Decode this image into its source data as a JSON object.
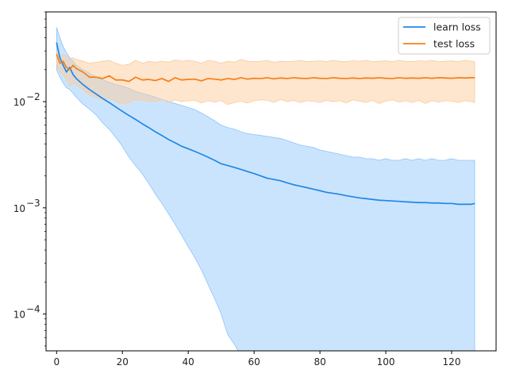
{
  "chart_data": {
    "type": "line",
    "yscale": "log",
    "xlim": [
      -3.2,
      133.5
    ],
    "ylim": [
      4.5e-05,
      0.07
    ],
    "grid": false,
    "legend_position": "top-right",
    "x_ticks": [
      0,
      20,
      40,
      60,
      80,
      100,
      120
    ],
    "x_tick_labels": [
      "0",
      "20",
      "40",
      "60",
      "80",
      "100",
      "120"
    ],
    "y_ticks": [
      0.0001,
      0.001,
      0.01
    ],
    "y_tick_labels": [
      "10",
      "10",
      "10"
    ],
    "y_tick_exponents": [
      "−4",
      "−3",
      "−2"
    ],
    "series": [
      {
        "name": "learn loss",
        "color": "#1f88e5",
        "band_color": "#8cc4fa",
        "x": [
          0,
          1,
          2,
          3,
          4,
          5,
          6,
          8,
          10,
          12,
          14,
          16,
          18,
          20,
          22,
          24,
          26,
          28,
          30,
          32,
          34,
          36,
          38,
          40,
          42,
          44,
          46,
          48,
          50,
          52,
          54,
          56,
          58,
          60,
          62,
          64,
          66,
          68,
          70,
          72,
          74,
          76,
          78,
          80,
          82,
          84,
          86,
          88,
          90,
          92,
          94,
          96,
          98,
          100,
          102,
          104,
          106,
          108,
          110,
          112,
          114,
          116,
          118,
          120,
          122,
          124,
          126,
          127
        ],
        "values": [
          0.036,
          0.026,
          0.022,
          0.019,
          0.021,
          0.018,
          0.0165,
          0.0145,
          0.013,
          0.0118,
          0.0107,
          0.0098,
          0.0089,
          0.0081,
          0.0074,
          0.0068,
          0.0062,
          0.0057,
          0.0052,
          0.0048,
          0.0044,
          0.0041,
          0.0038,
          0.0036,
          0.0034,
          0.0032,
          0.003,
          0.0028,
          0.0026,
          0.0025,
          0.0024,
          0.0023,
          0.0022,
          0.0021,
          0.002,
          0.0019,
          0.00185,
          0.0018,
          0.00172,
          0.00165,
          0.0016,
          0.00155,
          0.0015,
          0.00145,
          0.0014,
          0.00137,
          0.00134,
          0.0013,
          0.00127,
          0.00124,
          0.00122,
          0.0012,
          0.00118,
          0.00117,
          0.00116,
          0.00115,
          0.00114,
          0.00113,
          0.00112,
          0.00112,
          0.00111,
          0.00111,
          0.0011,
          0.0011,
          0.00108,
          0.00108,
          0.00108,
          0.0011
        ],
        "lower": [
          0.02,
          0.017,
          0.015,
          0.0135,
          0.013,
          0.012,
          0.011,
          0.0095,
          0.0085,
          0.0075,
          0.0063,
          0.0055,
          0.0046,
          0.0038,
          0.003,
          0.0025,
          0.0021,
          0.0017,
          0.00135,
          0.0011,
          0.00088,
          0.0007,
          0.00055,
          0.00043,
          0.00034,
          0.00026,
          0.00019,
          0.00014,
          0.0001,
          6.4e-05,
          5.2e-05,
          4e-05,
          4e-05,
          4e-05,
          4e-05,
          4e-05,
          4e-05,
          4e-05,
          4e-05,
          4e-05,
          4e-05,
          4e-05,
          4e-05,
          4e-05,
          4e-05,
          4e-05,
          4e-05,
          4e-05,
          4e-05,
          4e-05,
          4e-05,
          4e-05,
          4e-05,
          4e-05,
          4e-05,
          4e-05,
          4e-05,
          4e-05,
          4e-05,
          4e-05,
          4e-05,
          4e-05,
          4e-05,
          4e-05,
          4e-05,
          4e-05,
          4e-05,
          4e-05
        ],
        "upper": [
          0.05,
          0.04,
          0.033,
          0.029,
          0.026,
          0.024,
          0.022,
          0.02,
          0.0185,
          0.017,
          0.016,
          0.0152,
          0.0145,
          0.014,
          0.0133,
          0.0125,
          0.012,
          0.0115,
          0.011,
          0.0105,
          0.01,
          0.0096,
          0.0092,
          0.0088,
          0.0084,
          0.0078,
          0.0072,
          0.0066,
          0.006,
          0.0057,
          0.0055,
          0.0052,
          0.005,
          0.0049,
          0.0048,
          0.0047,
          0.0046,
          0.0045,
          0.0043,
          0.0041,
          0.0039,
          0.0038,
          0.0037,
          0.0035,
          0.0034,
          0.0033,
          0.0032,
          0.0031,
          0.003,
          0.003,
          0.0029,
          0.0029,
          0.0028,
          0.0029,
          0.0028,
          0.0028,
          0.0029,
          0.0028,
          0.0029,
          0.0028,
          0.0029,
          0.0028,
          0.0028,
          0.0029,
          0.0028,
          0.0028,
          0.0028,
          0.0028
        ]
      },
      {
        "name": "test loss",
        "color": "#f57f17",
        "band_color": "#fccb9e",
        "x": [
          0,
          1,
          2,
          3,
          4,
          5,
          6,
          8,
          10,
          12,
          14,
          16,
          18,
          20,
          22,
          24,
          26,
          28,
          30,
          32,
          34,
          36,
          38,
          40,
          42,
          44,
          46,
          48,
          50,
          52,
          54,
          56,
          58,
          60,
          62,
          64,
          66,
          68,
          70,
          72,
          74,
          76,
          78,
          80,
          82,
          84,
          86,
          88,
          90,
          92,
          94,
          96,
          98,
          100,
          102,
          104,
          106,
          108,
          110,
          112,
          114,
          116,
          118,
          120,
          122,
          124,
          126,
          127
        ],
        "values": [
          0.028,
          0.023,
          0.024,
          0.021,
          0.02,
          0.022,
          0.0205,
          0.019,
          0.017,
          0.017,
          0.0165,
          0.0175,
          0.016,
          0.016,
          0.0155,
          0.017,
          0.016,
          0.0162,
          0.0158,
          0.0165,
          0.0155,
          0.0168,
          0.016,
          0.0162,
          0.0163,
          0.0157,
          0.0165,
          0.0163,
          0.016,
          0.0165,
          0.0162,
          0.0168,
          0.0163,
          0.0166,
          0.0165,
          0.0168,
          0.0164,
          0.0167,
          0.0165,
          0.0168,
          0.0166,
          0.0165,
          0.0168,
          0.0166,
          0.0165,
          0.0168,
          0.0166,
          0.0165,
          0.0167,
          0.0165,
          0.0167,
          0.0166,
          0.0168,
          0.0166,
          0.0165,
          0.0168,
          0.0166,
          0.0167,
          0.0166,
          0.0168,
          0.0166,
          0.0168,
          0.0167,
          0.0166,
          0.0168,
          0.0167,
          0.0168,
          0.0168
        ],
        "lower": [
          0.022,
          0.019,
          0.018,
          0.016,
          0.014,
          0.015,
          0.0145,
          0.013,
          0.0115,
          0.011,
          0.0105,
          0.0108,
          0.01,
          0.0095,
          0.0098,
          0.0105,
          0.0102,
          0.0101,
          0.01,
          0.0105,
          0.0098,
          0.0104,
          0.01,
          0.0102,
          0.0103,
          0.0097,
          0.0102,
          0.0099,
          0.0102,
          0.0094,
          0.0098,
          0.0101,
          0.0097,
          0.0102,
          0.0104,
          0.0103,
          0.0098,
          0.0105,
          0.01,
          0.0103,
          0.0098,
          0.0102,
          0.0101,
          0.0098,
          0.0103,
          0.01,
          0.0102,
          0.0097,
          0.0104,
          0.0101,
          0.0098,
          0.0103,
          0.0096,
          0.0101,
          0.0104,
          0.0099,
          0.0102,
          0.0098,
          0.0103,
          0.0096,
          0.0102,
          0.0099,
          0.0102,
          0.0101,
          0.0098,
          0.0102,
          0.01,
          0.0098
        ],
        "upper": [
          0.03,
          0.026,
          0.028,
          0.027,
          0.025,
          0.026,
          0.025,
          0.024,
          0.023,
          0.0235,
          0.024,
          0.0245,
          0.023,
          0.022,
          0.0225,
          0.0245,
          0.023,
          0.024,
          0.0235,
          0.024,
          0.0235,
          0.0248,
          0.024,
          0.0245,
          0.024,
          0.023,
          0.0245,
          0.024,
          0.023,
          0.024,
          0.0235,
          0.025,
          0.024,
          0.0238,
          0.024,
          0.0245,
          0.0235,
          0.024,
          0.0238,
          0.024,
          0.0245,
          0.0238,
          0.024,
          0.0243,
          0.0238,
          0.0245,
          0.024,
          0.0238,
          0.0243,
          0.024,
          0.0245,
          0.0238,
          0.024,
          0.0242,
          0.0238,
          0.0245,
          0.024,
          0.0238,
          0.0243,
          0.024,
          0.0245,
          0.0238,
          0.024,
          0.0242,
          0.0238,
          0.0245,
          0.024,
          0.0238
        ]
      }
    ]
  }
}
